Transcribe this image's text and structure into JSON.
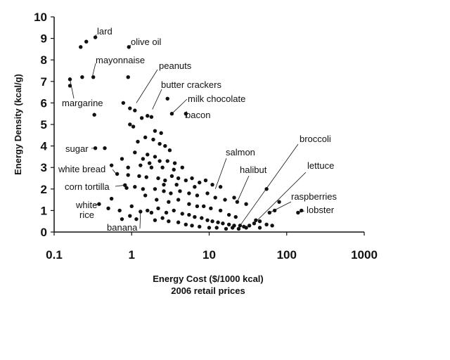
{
  "chart_data": {
    "type": "scatter",
    "title": "",
    "xlabel": "Energy Cost ($/1000 kcal)",
    "xlabel_sub": "2006 retail prices",
    "ylabel": "Energy Density (kcal/g)",
    "x_scale": "log",
    "xlim": [
      0.1,
      1000
    ],
    "ylim": [
      0,
      10
    ],
    "x_ticks": [
      "0.1",
      "1",
      "10",
      "100",
      "1000"
    ],
    "y_ticks": [
      "0",
      "1",
      "2",
      "3",
      "4",
      "5",
      "6",
      "7",
      "8",
      "9",
      "10"
    ],
    "grid": false,
    "legend": "none",
    "point_color": "#111111",
    "annotations": [
      {
        "text": "lard",
        "x": 0.34,
        "y": 9.05
      },
      {
        "text": "olive oil",
        "x": 0.92,
        "y": 8.6
      },
      {
        "text": "mayonnaise",
        "x": 0.31,
        "y": 7.2
      },
      {
        "text": "peanuts",
        "x": 1.15,
        "y": 6.0
      },
      {
        "text": "butter crackers",
        "x": 1.85,
        "y": 5.7
      },
      {
        "text": "milk chocolate",
        "x": 3.3,
        "y": 5.5
      },
      {
        "text": "margarine",
        "x": 0.16,
        "y": 7.1
      },
      {
        "text": "bacon",
        "x": 5.0,
        "y": 5.5
      },
      {
        "text": "sugar",
        "x": 0.34,
        "y": 3.9
      },
      {
        "text": "salmon",
        "x": 12.0,
        "y": 2.0
      },
      {
        "text": "broccoli",
        "x": 25.0,
        "y": 0.3
      },
      {
        "text": "halibut",
        "x": 23.0,
        "y": 1.4
      },
      {
        "text": "white bread",
        "x": 0.65,
        "y": 2.65
      },
      {
        "text": "lettuce",
        "x": 38.0,
        "y": 0.4
      },
      {
        "text": "corn tortilla",
        "x": 0.82,
        "y": 2.18
      },
      {
        "text": "raspberries",
        "x": 60.0,
        "y": 0.9
      },
      {
        "text": "lobster",
        "x": 140.0,
        "y": 0.9
      },
      {
        "text": "white",
        "x": 0.38,
        "y": 1.3
      },
      {
        "text": "rice",
        "x": 0.38,
        "y": 1.3
      },
      {
        "text": "banana",
        "x": 1.3,
        "y": 0.95
      }
    ],
    "points": [
      {
        "x": 0.34,
        "y": 9.05
      },
      {
        "x": 0.26,
        "y": 8.85
      },
      {
        "x": 0.22,
        "y": 8.6
      },
      {
        "x": 0.92,
        "y": 8.6
      },
      {
        "x": 0.32,
        "y": 7.2
      },
      {
        "x": 0.23,
        "y": 7.2
      },
      {
        "x": 0.9,
        "y": 7.2
      },
      {
        "x": 0.16,
        "y": 7.1
      },
      {
        "x": 0.16,
        "y": 6.8
      },
      {
        "x": 0.33,
        "y": 5.45
      },
      {
        "x": 2.9,
        "y": 6.2
      },
      {
        "x": 0.78,
        "y": 6.0
      },
      {
        "x": 0.95,
        "y": 5.75
      },
      {
        "x": 1.1,
        "y": 5.65
      },
      {
        "x": 1.6,
        "y": 5.4
      },
      {
        "x": 1.35,
        "y": 5.3
      },
      {
        "x": 1.8,
        "y": 5.35
      },
      {
        "x": 3.3,
        "y": 5.5
      },
      {
        "x": 5.0,
        "y": 5.5
      },
      {
        "x": 0.95,
        "y": 5.0
      },
      {
        "x": 1.05,
        "y": 4.9
      },
      {
        "x": 0.34,
        "y": 3.9
      },
      {
        "x": 0.45,
        "y": 3.9
      },
      {
        "x": 2.0,
        "y": 4.7
      },
      {
        "x": 2.4,
        "y": 4.6
      },
      {
        "x": 1.5,
        "y": 4.4
      },
      {
        "x": 1.9,
        "y": 4.3
      },
      {
        "x": 2.3,
        "y": 4.1
      },
      {
        "x": 1.2,
        "y": 4.2
      },
      {
        "x": 2.7,
        "y": 4.0
      },
      {
        "x": 3.1,
        "y": 3.8
      },
      {
        "x": 1.1,
        "y": 3.7
      },
      {
        "x": 1.6,
        "y": 3.6
      },
      {
        "x": 2.0,
        "y": 3.5
      },
      {
        "x": 0.75,
        "y": 3.4
      },
      {
        "x": 2.9,
        "y": 3.3
      },
      {
        "x": 3.6,
        "y": 3.2
      },
      {
        "x": 1.3,
        "y": 3.1
      },
      {
        "x": 1.8,
        "y": 3.0
      },
      {
        "x": 0.9,
        "y": 3.0
      },
      {
        "x": 0.55,
        "y": 3.1
      },
      {
        "x": 0.65,
        "y": 2.7
      },
      {
        "x": 0.9,
        "y": 2.65
      },
      {
        "x": 1.25,
        "y": 2.6
      },
      {
        "x": 1.55,
        "y": 2.55
      },
      {
        "x": 2.2,
        "y": 2.5
      },
      {
        "x": 2.7,
        "y": 2.4
      },
      {
        "x": 3.3,
        "y": 2.6
      },
      {
        "x": 4.0,
        "y": 2.5
      },
      {
        "x": 5.0,
        "y": 2.4
      },
      {
        "x": 6.0,
        "y": 2.5
      },
      {
        "x": 7.5,
        "y": 2.3
      },
      {
        "x": 9.0,
        "y": 2.4
      },
      {
        "x": 11.0,
        "y": 2.2
      },
      {
        "x": 14.0,
        "y": 2.1
      },
      {
        "x": 0.82,
        "y": 2.18
      },
      {
        "x": 0.86,
        "y": 2.05
      },
      {
        "x": 1.1,
        "y": 2.1
      },
      {
        "x": 1.4,
        "y": 2.0
      },
      {
        "x": 2.0,
        "y": 2.0
      },
      {
        "x": 2.6,
        "y": 1.9
      },
      {
        "x": 3.2,
        "y": 1.8
      },
      {
        "x": 4.2,
        "y": 1.9
      },
      {
        "x": 5.5,
        "y": 1.8
      },
      {
        "x": 7.0,
        "y": 1.7
      },
      {
        "x": 9.5,
        "y": 1.8
      },
      {
        "x": 12.0,
        "y": 1.6
      },
      {
        "x": 16.0,
        "y": 1.5
      },
      {
        "x": 21.0,
        "y": 1.6
      },
      {
        "x": 23.0,
        "y": 1.4
      },
      {
        "x": 30.0,
        "y": 1.3
      },
      {
        "x": 0.55,
        "y": 1.55
      },
      {
        "x": 0.38,
        "y": 1.3
      },
      {
        "x": 0.5,
        "y": 1.1
      },
      {
        "x": 0.7,
        "y": 1.0
      },
      {
        "x": 1.0,
        "y": 1.2
      },
      {
        "x": 1.3,
        "y": 0.95
      },
      {
        "x": 1.6,
        "y": 1.0
      },
      {
        "x": 1.8,
        "y": 0.9
      },
      {
        "x": 2.2,
        "y": 1.1
      },
      {
        "x": 2.8,
        "y": 0.9
      },
      {
        "x": 3.5,
        "y": 1.0
      },
      {
        "x": 4.5,
        "y": 0.85
      },
      {
        "x": 5.5,
        "y": 0.8
      },
      {
        "x": 6.5,
        "y": 0.7
      },
      {
        "x": 8.0,
        "y": 0.65
      },
      {
        "x": 9.5,
        "y": 0.55
      },
      {
        "x": 11.0,
        "y": 0.5
      },
      {
        "x": 13.0,
        "y": 0.45
      },
      {
        "x": 15.0,
        "y": 0.4
      },
      {
        "x": 18.0,
        "y": 0.35
      },
      {
        "x": 21.0,
        "y": 0.3
      },
      {
        "x": 25.0,
        "y": 0.3
      },
      {
        "x": 28.0,
        "y": 0.25
      },
      {
        "x": 33.0,
        "y": 0.3
      },
      {
        "x": 38.0,
        "y": 0.4
      },
      {
        "x": 45.0,
        "y": 0.5
      },
      {
        "x": 55.0,
        "y": 0.35
      },
      {
        "x": 65.0,
        "y": 0.3
      },
      {
        "x": 0.75,
        "y": 0.6
      },
      {
        "x": 0.95,
        "y": 0.75
      },
      {
        "x": 1.15,
        "y": 0.6
      },
      {
        "x": 2.0,
        "y": 0.55
      },
      {
        "x": 2.5,
        "y": 0.65
      },
      {
        "x": 3.0,
        "y": 0.5
      },
      {
        "x": 4.0,
        "y": 0.45
      },
      {
        "x": 5.0,
        "y": 0.35
      },
      {
        "x": 6.0,
        "y": 0.3
      },
      {
        "x": 7.5,
        "y": 0.25
      },
      {
        "x": 10.0,
        "y": 0.2
      },
      {
        "x": 12.5,
        "y": 0.2
      },
      {
        "x": 16.5,
        "y": 0.15
      },
      {
        "x": 20.0,
        "y": 0.2
      },
      {
        "x": 24.0,
        "y": 0.15
      },
      {
        "x": 30.0,
        "y": 0.2
      },
      {
        "x": 40.0,
        "y": 0.55
      },
      {
        "x": 45.0,
        "y": 0.2
      },
      {
        "x": 55.0,
        "y": 2.0
      },
      {
        "x": 60.0,
        "y": 0.9
      },
      {
        "x": 80.0,
        "y": 1.4
      },
      {
        "x": 70.0,
        "y": 1.0
      },
      {
        "x": 140.0,
        "y": 0.9
      },
      {
        "x": 155.0,
        "y": 1.0
      },
      {
        "x": 2.5,
        "y": 3.0
      },
      {
        "x": 3.5,
        "y": 2.9
      },
      {
        "x": 4.5,
        "y": 3.0
      },
      {
        "x": 1.7,
        "y": 3.2
      },
      {
        "x": 2.3,
        "y": 3.3
      },
      {
        "x": 1.4,
        "y": 3.4
      },
      {
        "x": 3.8,
        "y": 2.2
      },
      {
        "x": 6.5,
        "y": 2.1
      },
      {
        "x": 8.5,
        "y": 1.2
      },
      {
        "x": 10.5,
        "y": 1.1
      },
      {
        "x": 14.0,
        "y": 1.0
      },
      {
        "x": 18.0,
        "y": 0.8
      },
      {
        "x": 22.0,
        "y": 0.7
      },
      {
        "x": 2.1,
        "y": 1.5
      },
      {
        "x": 3.0,
        "y": 1.4
      },
      {
        "x": 4.0,
        "y": 1.5
      },
      {
        "x": 5.5,
        "y": 1.3
      },
      {
        "x": 7.0,
        "y": 1.2
      },
      {
        "x": 1.5,
        "y": 1.7
      },
      {
        "x": 2.6,
        "y": 2.2
      }
    ]
  }
}
